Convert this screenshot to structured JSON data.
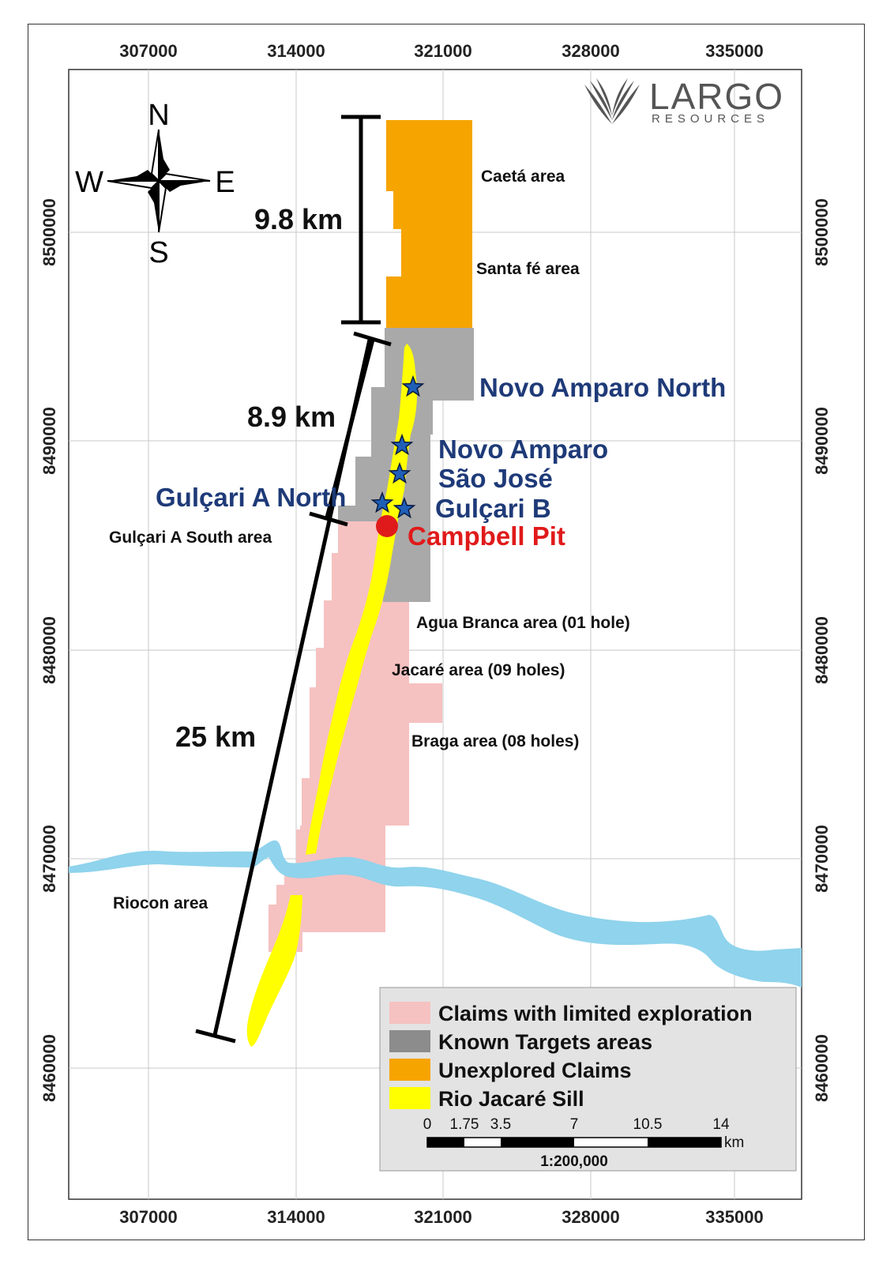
{
  "map": {
    "x_ticks": [
      "307000",
      "314000",
      "321000",
      "328000",
      "335000"
    ],
    "y_ticks": [
      "8500000",
      "8490000",
      "8480000",
      "8470000",
      "8460000"
    ]
  },
  "logo": {
    "name": "LARGO",
    "subtitle": "RESOURCES"
  },
  "compass": {
    "n": "N",
    "s": "S",
    "e": "E",
    "w": "W"
  },
  "distances": {
    "d1": "9.8 km",
    "d2": "8.9 km",
    "d3": "25 km"
  },
  "areas": {
    "caeta": "Caetá area",
    "santa_fe": "Santa fé area",
    "gulcari_south": "Gulçari A South area",
    "agua_branca": "Agua Branca area (01 hole)",
    "jacare": "Jacaré area (09 holes)",
    "braga": "Braga area (08 holes)",
    "riocon": "Riocon area"
  },
  "targets": {
    "novo_amparo_north": "Novo Amparo North",
    "novo_amparo": "Novo Amparo",
    "sao_jose": "São José",
    "gulcari_a_north": "Gulçari A North",
    "gulcari_b": "Gulçari B",
    "campbell_pit": "Campbell Pit"
  },
  "legend": {
    "items": [
      {
        "label": "Claims with limited exploration",
        "color": "#f6c1c1"
      },
      {
        "label": "Known Targets areas",
        "color": "#8c8c8c"
      },
      {
        "label": "Unexplored Claims",
        "color": "#f6a400"
      },
      {
        "label": "Rio Jacaré Sill",
        "color": "#ffff00"
      }
    ]
  },
  "scale_bar": {
    "ticks": [
      "0",
      "1.75",
      "3.5",
      "7",
      "10.5",
      "14"
    ],
    "unit": "km",
    "ratio": "1:200,000"
  },
  "colors": {
    "river": "#8fd3ec",
    "limited": "#f6c1c1",
    "known": "#a9a9a9",
    "unexplored": "#f6a400",
    "sill": "#ffff00",
    "pit": "#e01a1a",
    "star": "#1f5fb8"
  }
}
